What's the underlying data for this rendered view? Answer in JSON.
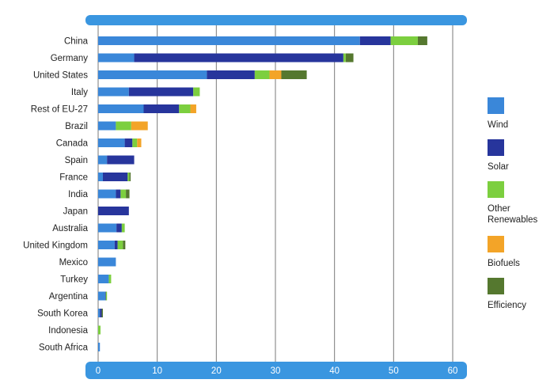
{
  "chart_data": {
    "type": "bar",
    "orientation": "horizontal",
    "stacked": true,
    "title": "",
    "xlabel": "",
    "ylabel": "",
    "xlim": [
      0,
      60
    ],
    "xticks": [
      "0",
      "10",
      "20",
      "30",
      "40",
      "50",
      "60"
    ],
    "grid": true,
    "legend_position": "right",
    "categories": [
      "China",
      "Germany",
      "United States",
      "Italy",
      "Rest of EU-27",
      "Brazil",
      "Canada",
      "Spain",
      "France",
      "India",
      "Japan",
      "Australia",
      "United Kingdom",
      "Mexico",
      "Turkey",
      "Argentina",
      "South Korea",
      "Indonesia",
      "South Africa"
    ],
    "series": [
      {
        "name": "Wind",
        "color": "#3a87d9",
        "values": [
          44.3,
          6.1,
          18.4,
          5.2,
          7.7,
          3.0,
          4.5,
          1.5,
          0.8,
          3.0,
          0.0,
          3.1,
          2.8,
          3.0,
          1.8,
          1.2,
          0.3,
          0.0,
          0.3
        ]
      },
      {
        "name": "Solar",
        "color": "#27359c",
        "values": [
          5.2,
          35.4,
          8.1,
          10.9,
          6.0,
          0.0,
          1.3,
          4.6,
          4.2,
          0.8,
          5.2,
          0.9,
          0.5,
          0.0,
          0.0,
          0.1,
          0.3,
          0.0,
          0.0
        ]
      },
      {
        "name": "Other Renewables",
        "color": "#7ccf3f",
        "values": [
          4.6,
          0.4,
          2.5,
          1.1,
          1.9,
          2.6,
          0.8,
          0.0,
          0.3,
          0.9,
          0.0,
          0.5,
          0.9,
          0.0,
          0.4,
          0.2,
          0.0,
          0.4,
          0.0
        ]
      },
      {
        "name": "Biofuels",
        "color": "#f3a428",
        "values": [
          0.0,
          0.0,
          2.0,
          0.0,
          1.0,
          2.8,
          0.7,
          0.0,
          0.0,
          0.0,
          0.0,
          0.0,
          0.0,
          0.0,
          0.0,
          0.0,
          0.0,
          0.0,
          0.0
        ]
      },
      {
        "name": "Efficiency",
        "color": "#55782f",
        "values": [
          1.6,
          1.3,
          4.3,
          0.0,
          0.0,
          0.0,
          0.0,
          0.0,
          0.2,
          0.6,
          0.0,
          0.0,
          0.4,
          0.0,
          0.0,
          0.0,
          0.2,
          0.0,
          0.0
        ]
      }
    ],
    "frame_color": "#3a96e0",
    "grid_color": "#7a7a7a"
  }
}
